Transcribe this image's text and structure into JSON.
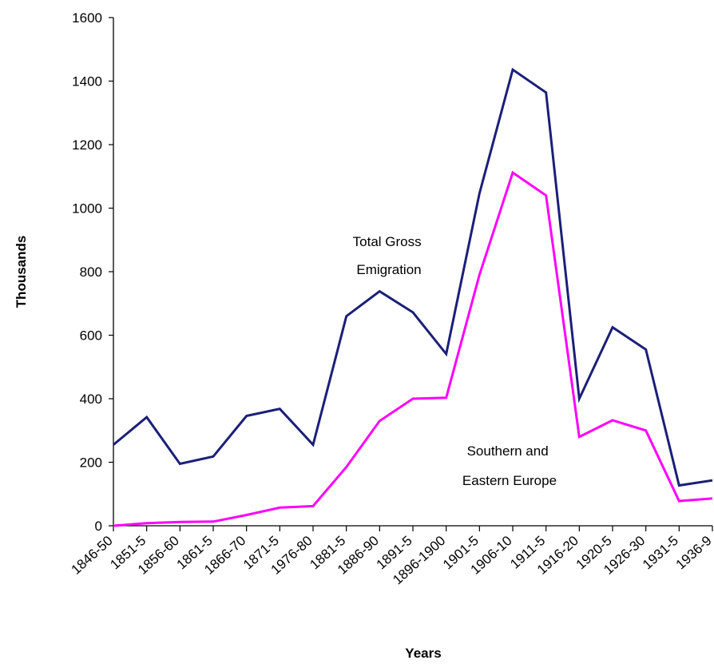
{
  "chart_data": {
    "type": "line",
    "title": "",
    "xlabel": "Years",
    "ylabel": "Thousands",
    "ylim": [
      0,
      1600
    ],
    "yticks": [
      "0",
      "200",
      "400",
      "600",
      "800",
      "1000",
      "1200",
      "1400",
      "1600"
    ],
    "grid": false,
    "legend": "none",
    "categories": [
      "1846-50",
      "1851-5",
      "1856-60",
      "1861-5",
      "1866-70",
      "1871-5",
      "1976-80",
      "1881-5",
      "1886-90",
      "1891-5",
      "1896-1900",
      "1901-5",
      "1906-10",
      "1911-5",
      "1916-20",
      "1920-5",
      "1926-30",
      "1931-5",
      "1936-9"
    ],
    "series": [
      {
        "name": "Total Gross Emigration",
        "color": "#1b1f78",
        "values": [
          255,
          342,
          195,
          218,
          346,
          368,
          255,
          660,
          738,
          672,
          541,
          1046,
          1436,
          1364,
          400,
          625,
          555,
          127,
          143
        ]
      },
      {
        "name": "Southern and Eastern Europe",
        "color": "#ff00ff",
        "values": [
          0,
          8,
          12,
          13,
          34,
          57,
          62,
          185,
          330,
          400,
          403,
          790,
          1112,
          1040,
          280,
          332,
          300,
          78,
          86
        ]
      }
    ],
    "annotations": [
      {
        "lines": [
          "Total Gross",
          "Emigration"
        ]
      },
      {
        "lines": [
          "Southern and",
          "Eastern Europe"
        ]
      }
    ]
  }
}
